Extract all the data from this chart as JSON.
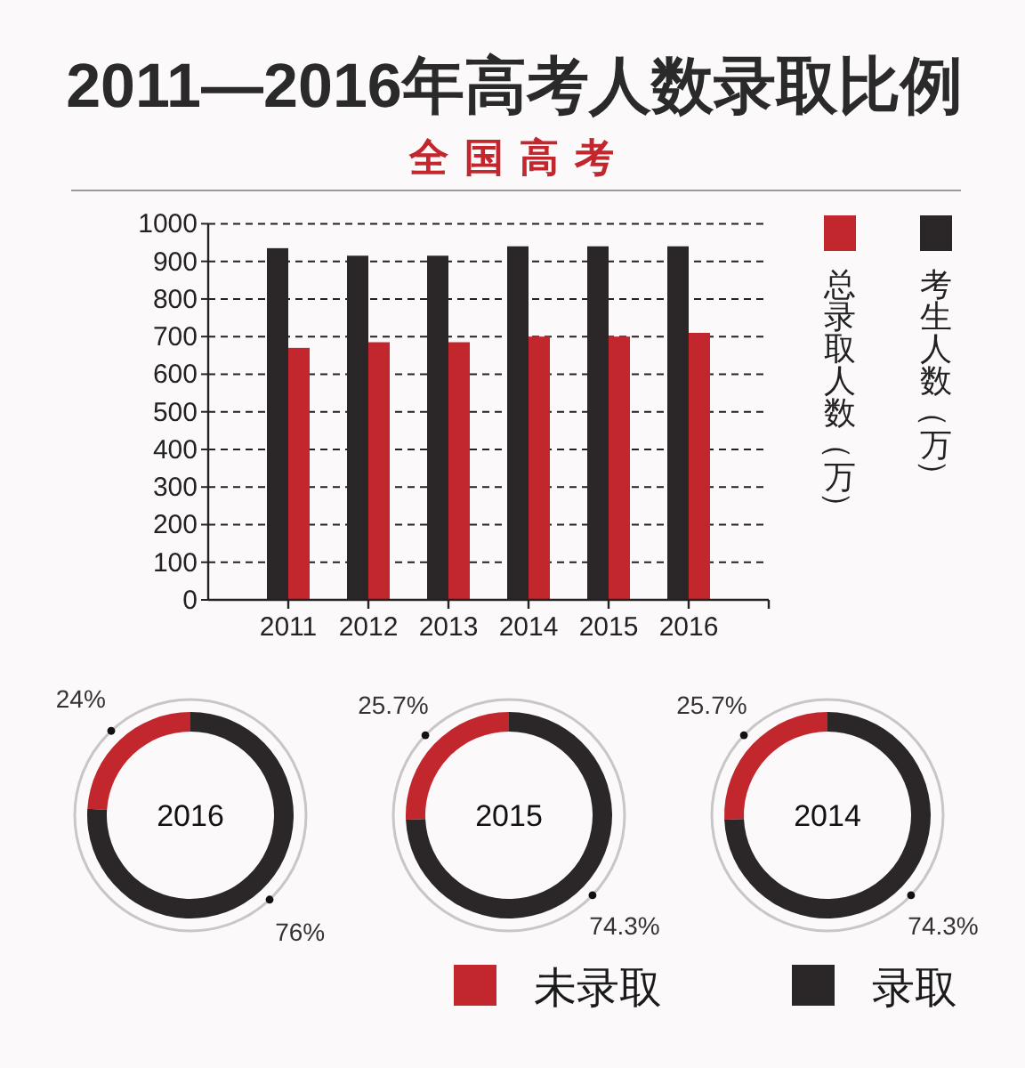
{
  "chart_data": [
    {
      "type": "bar",
      "title": "2011—2016年高考人数录取比例",
      "subtitle": "全国高考",
      "categories": [
        "2011",
        "2012",
        "2013",
        "2014",
        "2015",
        "2016"
      ],
      "series": [
        {
          "name": "考生人数（万）",
          "color": "#2b2627",
          "values": [
            935,
            915,
            915,
            940,
            940,
            940
          ]
        },
        {
          "name": "总录取人数（万）",
          "color": "#c1272d",
          "values": [
            670,
            685,
            685,
            700,
            700,
            710
          ]
        }
      ],
      "ylim": [
        0,
        1000
      ],
      "yticks": [
        0,
        100,
        200,
        300,
        400,
        500,
        600,
        700,
        800,
        900,
        1000
      ],
      "grid": "y",
      "legend": "right"
    },
    {
      "type": "donut",
      "title": "2016",
      "values": [
        24,
        76
      ],
      "colors": [
        "#c1272d",
        "#2b2627"
      ],
      "value_labels": [
        "24%",
        "76%"
      ]
    },
    {
      "type": "donut",
      "title": "2015",
      "categories": [
        "未录取",
        "录取"
      ],
      "values": [
        25.7,
        74.3
      ],
      "colors": [
        "#c1272d",
        "#2b2627"
      ],
      "value_labels": [
        "25.7%",
        "74.3%"
      ],
      "legend": "bottom"
    },
    {
      "type": "donut",
      "title": "2014",
      "values": [
        25.7,
        74.3
      ],
      "colors": [
        "#c1272d",
        "#2b2627"
      ],
      "value_labels": [
        "25.7%",
        "74.3%"
      ]
    }
  ]
}
